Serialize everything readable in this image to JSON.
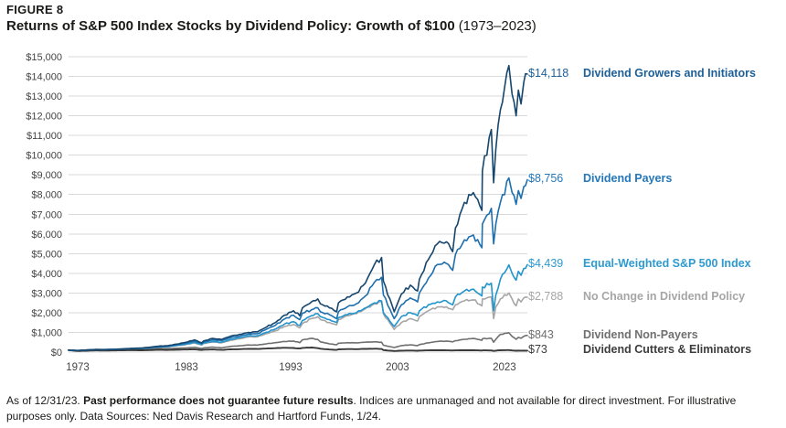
{
  "header": {
    "figure_label": "FIGURE 8",
    "title": "Returns of S&P 500 Index Stocks by Dividend Policy: Growth of $100",
    "title_period": "(1973–2023)"
  },
  "chart_data": {
    "type": "line",
    "title": "Returns of S&P 500 Index Stocks by Dividend Policy: Growth of $100 (1973–2023)",
    "xlabel": "",
    "ylabel": "",
    "x_range": [
      1973,
      2024
    ],
    "y_range": [
      0,
      15000
    ],
    "y_tick_step": 1000,
    "grid": true,
    "grid_color": "#d9d9d9",
    "axis_text_color": "#444444",
    "legend_position": "right-annotations",
    "y_tick_labels": [
      "$0",
      "$1,000",
      "$2,000",
      "$3,000",
      "$4,000",
      "$5,000",
      "$6,000",
      "$7,000",
      "$8,000",
      "$9,000",
      "$10,000",
      "$11,000",
      "$12,000",
      "$13,000",
      "$14,000",
      "$15,000"
    ],
    "x_tick_labels": [
      "1973",
      "1983",
      "1993",
      "2003",
      "2023"
    ],
    "x_tick_positions_pct": [
      2.0,
      25.7,
      48.4,
      71.7,
      95.0
    ],
    "x": [
      1973,
      1974,
      1975,
      1976,
      1977,
      1978,
      1979,
      1980,
      1981,
      1982,
      1983,
      1984,
      1985,
      1986,
      1987,
      1987.8,
      1988,
      1989,
      1990,
      1991,
      1992,
      1993,
      1994,
      1995,
      1996,
      1997,
      1998,
      1998.7,
      1999,
      2000,
      2000.7,
      2001,
      2002,
      2002.8,
      2003,
      2004,
      2005,
      2006,
      2007,
      2007.8,
      2008,
      2009.2,
      2010,
      2011,
      2011.8,
      2012,
      2013,
      2014,
      2015,
      2015.7,
      2016,
      2017,
      2018,
      2018.95,
      2019,
      2020,
      2020.25,
      2020.5,
      2021,
      2021.95,
      2022.3,
      2022.75,
      2023,
      2023.3,
      2023.6,
      2024
    ],
    "series": [
      {
        "name": "Dividend Growers and Initiators",
        "final_value_label": "$14,118",
        "final_value": 14118,
        "color": "#16466d",
        "label_color": "#1d5f97",
        "line_width": 1.6,
        "values": [
          100,
          80,
          108,
          132,
          128,
          140,
          162,
          190,
          205,
          245,
          300,
          325,
          405,
          490,
          620,
          470,
          560,
          690,
          640,
          810,
          900,
          1000,
          1030,
          1270,
          1500,
          1870,
          2100,
          1850,
          2250,
          2550,
          2700,
          2450,
          2250,
          2050,
          2500,
          2800,
          3000,
          3500,
          4450,
          4800,
          3600,
          2050,
          2950,
          3400,
          3100,
          3700,
          4700,
          5500,
          5600,
          5100,
          6300,
          7600,
          8100,
          7200,
          9200,
          11300,
          8600,
          10300,
          12300,
          14550,
          13100,
          12000,
          13300,
          12600,
          13700,
          14118
        ]
      },
      {
        "name": "Dividend Payers",
        "final_value_label": "$8,756",
        "final_value": 8756,
        "color": "#1e6fae",
        "label_color": "#2477b8",
        "line_width": 1.6,
        "values": [
          100,
          82,
          108,
          130,
          126,
          136,
          155,
          178,
          192,
          228,
          278,
          298,
          370,
          445,
          555,
          430,
          510,
          625,
          580,
          730,
          810,
          920,
          940,
          1160,
          1360,
          1680,
          1870,
          1650,
          1980,
          2150,
          2250,
          2050,
          1900,
          1700,
          2050,
          2300,
          2450,
          2850,
          3550,
          3800,
          2900,
          1700,
          2400,
          2750,
          2550,
          3000,
          3750,
          4450,
          4500,
          4150,
          4950,
          5700,
          5950,
          5300,
          6500,
          7300,
          5500,
          6500,
          7600,
          8840,
          8100,
          7500,
          8200,
          7800,
          8400,
          8756
        ]
      },
      {
        "name": "Equal-Weighted S&P 500 Index",
        "final_value_label": "$4,439",
        "final_value": 4439,
        "color": "#2394cc",
        "label_color": "#2d9ad0",
        "line_width": 1.6,
        "values": [
          100,
          76,
          104,
          128,
          124,
          134,
          152,
          172,
          182,
          215,
          262,
          275,
          340,
          400,
          490,
          380,
          455,
          545,
          500,
          640,
          720,
          820,
          830,
          1010,
          1170,
          1420,
          1540,
          1350,
          1600,
          1850,
          1950,
          1800,
          1650,
          1500,
          1750,
          1900,
          2000,
          2250,
          2500,
          2600,
          2000,
          1300,
          1800,
          2000,
          1850,
          2100,
          2400,
          2550,
          2600,
          2400,
          2800,
          3100,
          3200,
          2850,
          3300,
          3500,
          2100,
          2900,
          3700,
          4430,
          4000,
          3650,
          4100,
          3900,
          4250,
          4439
        ]
      },
      {
        "name": "No Change in Dividend Policy",
        "final_value_label": "$2,788",
        "final_value": 2788,
        "color": "#a6a6a6",
        "label_color": "#a6a6a6",
        "line_width": 1.6,
        "values": [
          100,
          78,
          103,
          125,
          120,
          130,
          147,
          165,
          175,
          205,
          250,
          262,
          322,
          378,
          462,
          360,
          430,
          515,
          472,
          600,
          675,
          765,
          775,
          940,
          1080,
          1300,
          1400,
          1230,
          1450,
          1700,
          1800,
          1650,
          1500,
          1380,
          1650,
          1850,
          1950,
          2200,
          2450,
          2550,
          1950,
          1150,
          1500,
          1700,
          1580,
          1800,
          2100,
          2300,
          2300,
          2150,
          2400,
          2600,
          2650,
          2350,
          2700,
          2800,
          1700,
          2300,
          2700,
          3000,
          2700,
          2350,
          2700,
          2550,
          2750,
          2788
        ]
      },
      {
        "name": "Dividend Non-Payers",
        "final_value_label": "$843",
        "final_value": 843,
        "color": "#6f6f6f",
        "label_color": "#6f6f6f",
        "line_width": 1.6,
        "values": [
          100,
          60,
          80,
          92,
          90,
          100,
          112,
          135,
          130,
          145,
          180,
          170,
          195,
          215,
          240,
          185,
          210,
          250,
          215,
          290,
          320,
          360,
          355,
          420,
          480,
          540,
          560,
          480,
          620,
          700,
          640,
          520,
          420,
          370,
          450,
          480,
          470,
          500,
          520,
          500,
          350,
          230,
          330,
          370,
          330,
          380,
          470,
          540,
          560,
          520,
          580,
          650,
          690,
          600,
          680,
          700,
          500,
          650,
          900,
          980,
          800,
          650,
          750,
          700,
          800,
          843
        ]
      },
      {
        "name": "Dividend Cutters & Eliminators",
        "final_value_label": "$73",
        "final_value": 73,
        "color": "#383838",
        "label_color": "#3c3c3c",
        "line_width": 1.9,
        "values": [
          100,
          55,
          70,
          82,
          78,
          82,
          90,
          100,
          95,
          100,
          115,
          105,
          120,
          130,
          140,
          105,
          120,
          135,
          110,
          140,
          150,
          165,
          160,
          180,
          200,
          220,
          210,
          180,
          215,
          230,
          200,
          170,
          130,
          110,
          140,
          155,
          150,
          165,
          170,
          160,
          100,
          55,
          75,
          80,
          70,
          78,
          90,
          95,
          90,
          82,
          88,
          95,
          92,
          80,
          88,
          85,
          60,
          75,
          95,
          100,
          85,
          70,
          78,
          72,
          78,
          73
        ]
      }
    ]
  },
  "footer": {
    "text_1": "As of 12/31/23. ",
    "bold": "Past performance does not guarantee future results",
    "text_2": ". Indices are unmanaged and not available for direct investment. For illustrative purposes only. Data Sources: Ned Davis Research and Hartford Funds, 1/24."
  }
}
